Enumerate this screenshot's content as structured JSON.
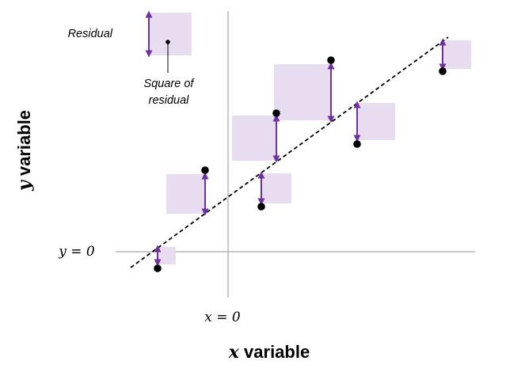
{
  "labels": {
    "y_axis_var": "y",
    "y_axis_word": " variable",
    "x_axis_var": "x",
    "x_axis_word": " variable",
    "y_zero": "y = 0",
    "x_zero": "x = 0",
    "legend_residual": "Residual",
    "legend_square_line1": "Square of",
    "legend_square_line2": "residual"
  },
  "colors": {
    "square_fill": "#e8dcf0",
    "residual_arrow": "#7030a0",
    "point": "#000000",
    "fit_line": "#000000",
    "axis": "#a6a6a6"
  }
}
